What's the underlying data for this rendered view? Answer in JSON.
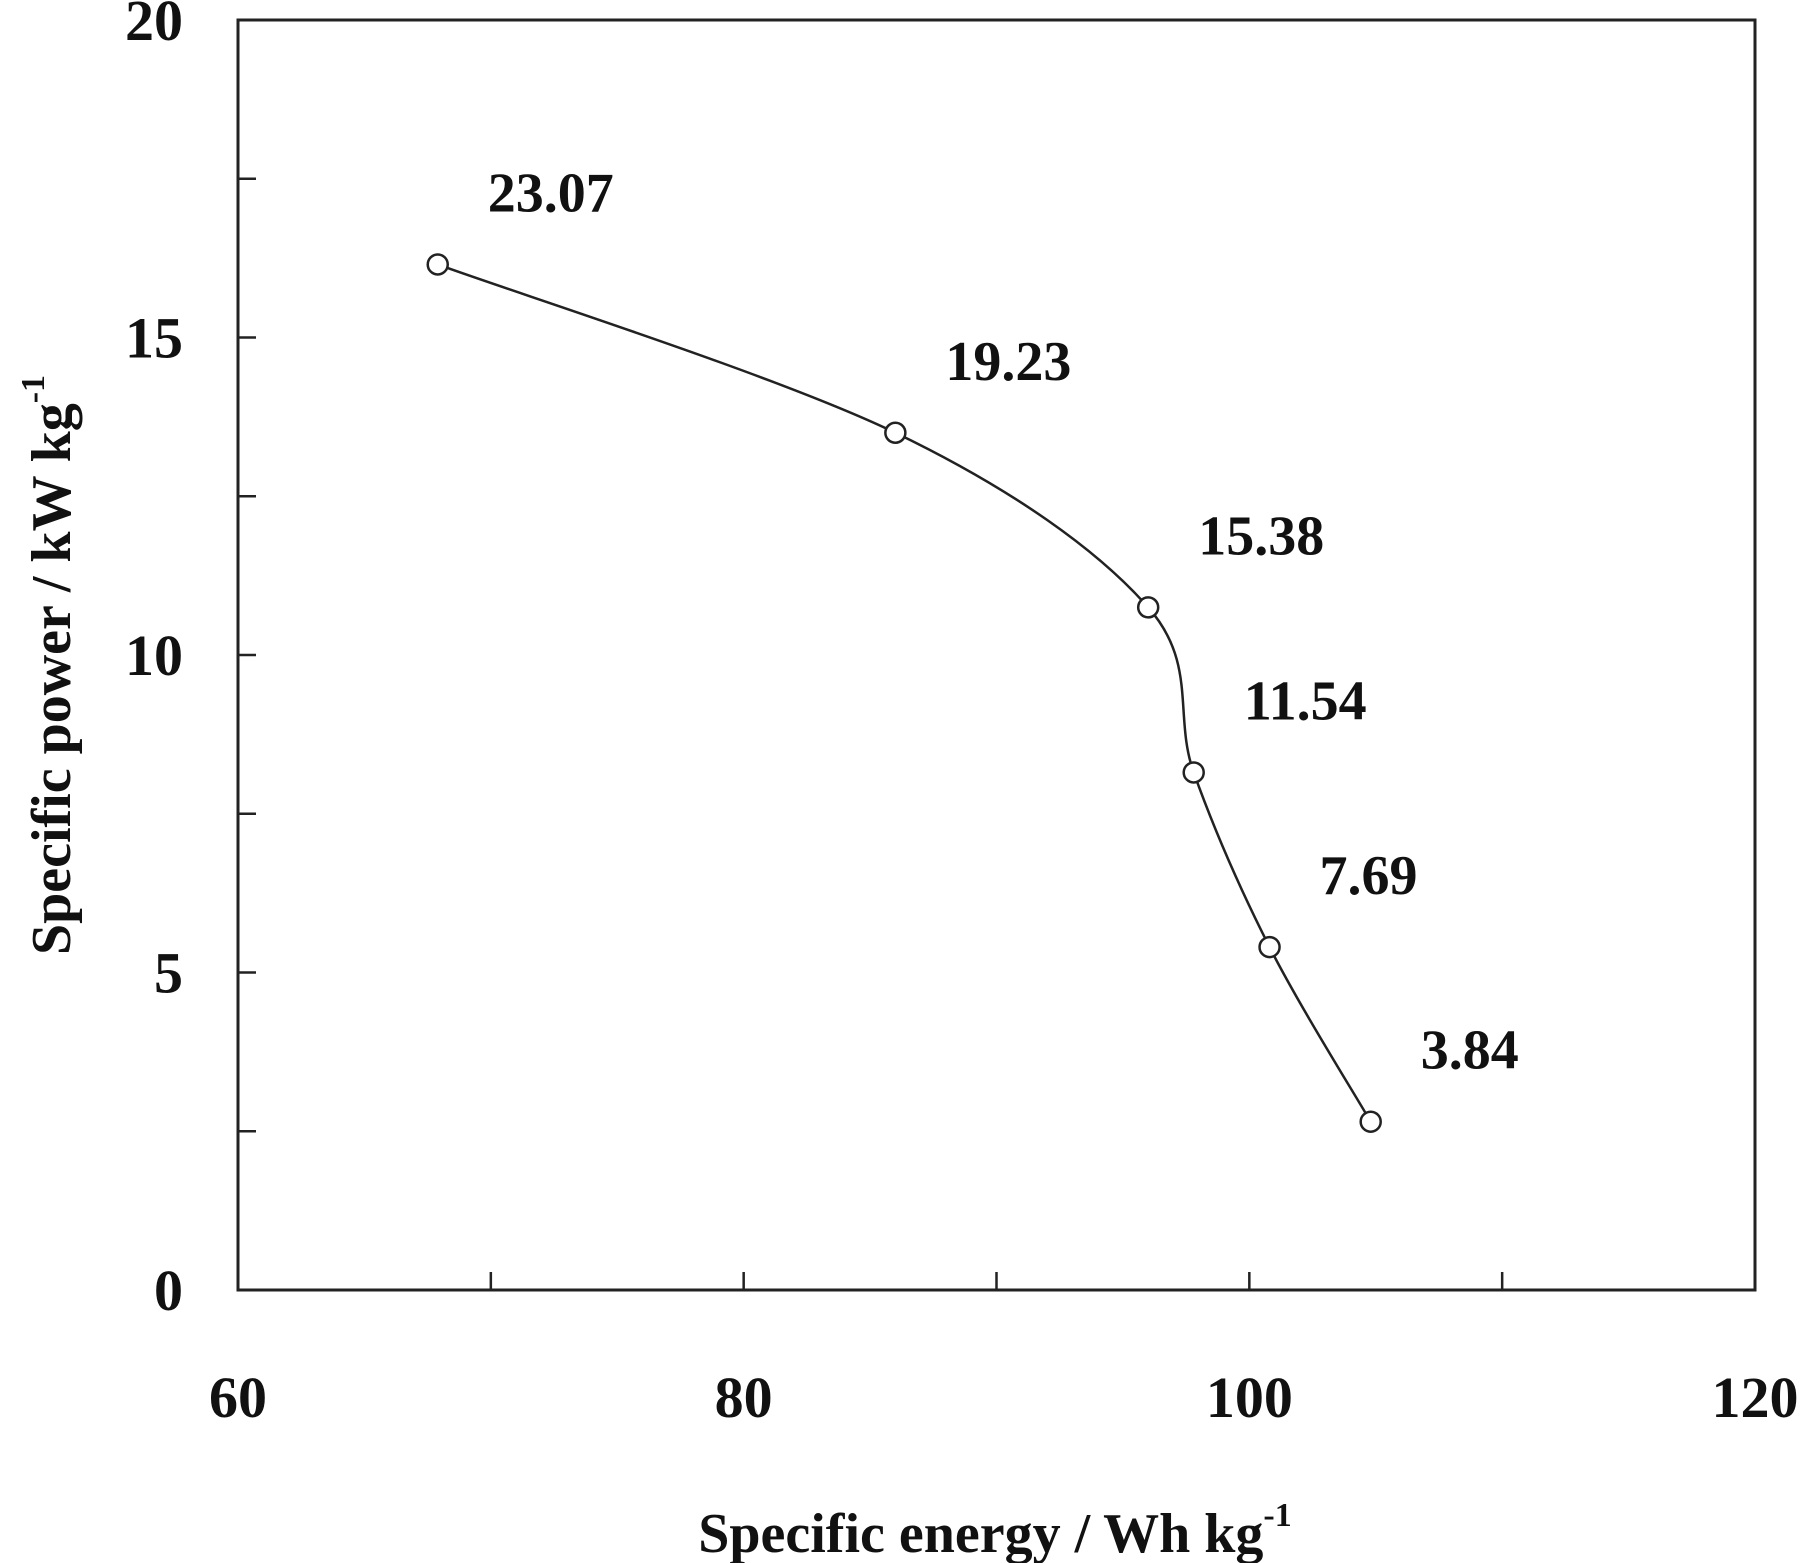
{
  "chart_data": {
    "type": "line",
    "title": "",
    "xlabel": {
      "main": "Specific energy / Wh kg",
      "superscript": "-1"
    },
    "ylabel": {
      "main": "Specific power / kW kg",
      "superscript": "-1"
    },
    "xlim": [
      60,
      120
    ],
    "ylim": [
      0,
      20
    ],
    "x_major_ticks": [
      60,
      80,
      100,
      120
    ],
    "x_minor_ticks": [
      70,
      90,
      110
    ],
    "y_major_ticks": [
      0,
      5,
      10,
      15,
      20
    ],
    "y_minor_ticks": [
      2.5,
      7.5,
      12.5,
      17.5
    ],
    "grid": false,
    "legend": "none",
    "series": [
      {
        "marker": "open-circle",
        "line_color": "#222222",
        "points": [
          {
            "x": 67.9,
            "y": 16.15,
            "label": "23.07"
          },
          {
            "x": 86.0,
            "y": 13.5,
            "label": "19.23"
          },
          {
            "x": 96.0,
            "y": 10.75,
            "label": "15.38"
          },
          {
            "x": 97.8,
            "y": 8.15,
            "label": "11.54"
          },
          {
            "x": 100.8,
            "y": 5.4,
            "label": "7.69"
          },
          {
            "x": 104.8,
            "y": 2.65,
            "label": "3.84"
          }
        ]
      }
    ]
  }
}
